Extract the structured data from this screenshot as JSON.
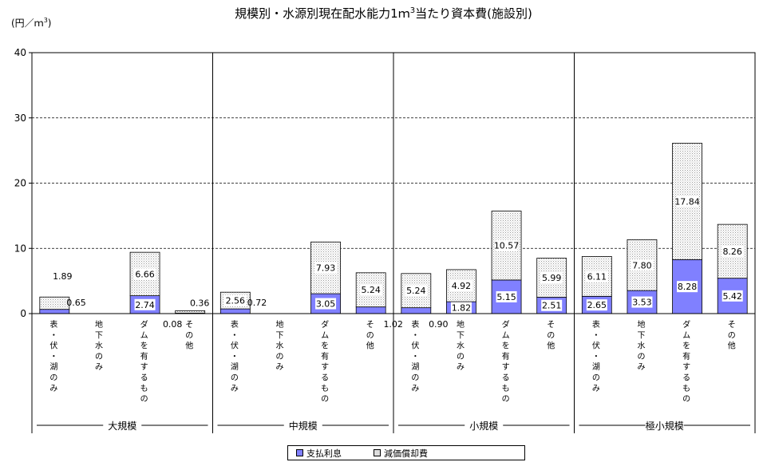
{
  "title_main": "規模別・水源別現在配水能力1ｍ",
  "title_sup": "3",
  "title_tail": "当たり資本費(施設別)",
  "y_unit_main": "(円／ｍ",
  "y_unit_sup": "3",
  "y_unit_tail": ")",
  "colors": {
    "interest": "#8080ff",
    "depreciation": "#e0e0e0",
    "grid": "#000000"
  },
  "chart_data": {
    "type": "bar",
    "stacked": true,
    "ylim": [
      0,
      40
    ],
    "yticks": [
      "0",
      "10",
      "20",
      "30",
      "40"
    ],
    "grid": "dashed-horizontal",
    "legend_position": "bottom",
    "groups": [
      {
        "name": "大規模",
        "categories": [
          "表・伏・湖のみ",
          "地下水のみ",
          "ダムを有するもの",
          "その他"
        ]
      },
      {
        "name": "中規模",
        "categories": [
          "表・伏・湖のみ",
          "地下水のみ",
          "ダムを有するもの",
          "その他"
        ]
      },
      {
        "name": "小規模",
        "categories": [
          "表・伏・湖のみ",
          "地下水のみ",
          "ダムを有するもの",
          "その他"
        ]
      },
      {
        "name": "極小規模",
        "categories": [
          "表・伏・湖のみ",
          "地下水のみ",
          "ダムを有するもの",
          "その他"
        ]
      }
    ],
    "series": [
      {
        "name": "支払利息",
        "key": "interest",
        "values": [
          0.65,
          0,
          2.74,
          0.08,
          0.72,
          0,
          3.05,
          1.02,
          0.9,
          1.82,
          5.15,
          2.51,
          2.65,
          3.53,
          8.28,
          5.42
        ],
        "labels": [
          "0.65",
          "",
          "2.74",
          "0.08",
          "0.72",
          "",
          "3.05",
          "1.02",
          "0.90",
          "1.82",
          "5.15",
          "2.51",
          "2.65",
          "3.53",
          "8.28",
          "5.42"
        ]
      },
      {
        "name": "減価償却費",
        "key": "depreciation",
        "values": [
          1.89,
          0,
          6.66,
          0.36,
          2.56,
          0,
          7.93,
          5.24,
          5.24,
          4.92,
          10.57,
          5.99,
          6.11,
          7.8,
          17.84,
          8.26
        ],
        "labels": [
          "1.89",
          "",
          "6.66",
          "0.36",
          "2.56",
          "",
          "7.93",
          "5.24",
          "5.24",
          "4.92",
          "10.57",
          "5.99",
          "6.11",
          "7.80",
          "17.84",
          "8.26"
        ]
      }
    ]
  }
}
